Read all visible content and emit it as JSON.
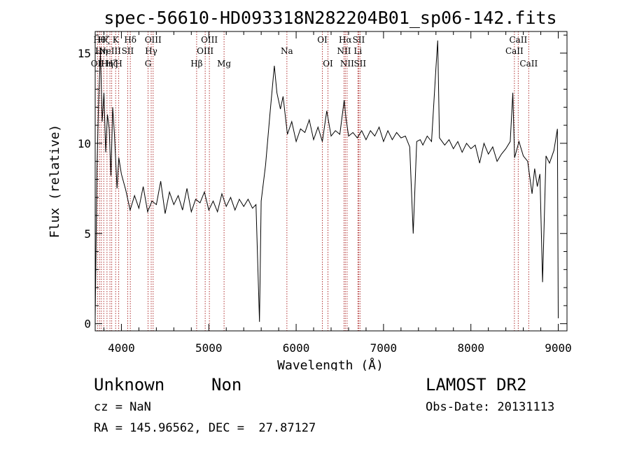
{
  "chart_data": {
    "type": "line",
    "title": "spec-56610-HD093318N282204B01_sp06-142.fits",
    "xlabel": "Wavelength (Å)",
    "ylabel": "Flux (relative)",
    "xlim": [
      3700,
      9100
    ],
    "ylim": [
      -0.4,
      16.2
    ],
    "x_ticks": [
      4000,
      5000,
      6000,
      7000,
      8000,
      9000
    ],
    "y_ticks": [
      0,
      5,
      10,
      15
    ],
    "grid": false,
    "series": [
      {
        "color": "#000000",
        "points": [
          [
            3700,
            0.3
          ],
          [
            3720,
            8.5
          ],
          [
            3740,
            12.5
          ],
          [
            3760,
            15.0
          ],
          [
            3780,
            11.2
          ],
          [
            3800,
            12.8
          ],
          [
            3820,
            9.5
          ],
          [
            3840,
            11.6
          ],
          [
            3860,
            10.8
          ],
          [
            3880,
            8.2
          ],
          [
            3900,
            12.0
          ],
          [
            3920,
            10.5
          ],
          [
            3950,
            7.5
          ],
          [
            3970,
            9.2
          ],
          [
            4000,
            8.3
          ],
          [
            4050,
            7.4
          ],
          [
            4100,
            6.3
          ],
          [
            4150,
            7.1
          ],
          [
            4200,
            6.4
          ],
          [
            4250,
            7.6
          ],
          [
            4300,
            6.2
          ],
          [
            4350,
            6.8
          ],
          [
            4400,
            6.6
          ],
          [
            4450,
            7.9
          ],
          [
            4500,
            6.1
          ],
          [
            4550,
            7.3
          ],
          [
            4600,
            6.6
          ],
          [
            4650,
            7.1
          ],
          [
            4700,
            6.3
          ],
          [
            4750,
            7.5
          ],
          [
            4800,
            6.2
          ],
          [
            4850,
            6.9
          ],
          [
            4900,
            6.7
          ],
          [
            4950,
            7.3
          ],
          [
            5000,
            6.3
          ],
          [
            5050,
            6.8
          ],
          [
            5100,
            6.2
          ],
          [
            5150,
            7.2
          ],
          [
            5200,
            6.5
          ],
          [
            5250,
            7.0
          ],
          [
            5300,
            6.3
          ],
          [
            5350,
            6.9
          ],
          [
            5400,
            6.5
          ],
          [
            5450,
            6.9
          ],
          [
            5500,
            6.4
          ],
          [
            5540,
            6.6
          ],
          [
            5580,
            0.1
          ],
          [
            5600,
            6.8
          ],
          [
            5650,
            8.8
          ],
          [
            5700,
            11.6
          ],
          [
            5750,
            14.3
          ],
          [
            5780,
            12.8
          ],
          [
            5820,
            11.9
          ],
          [
            5850,
            12.6
          ],
          [
            5900,
            10.5
          ],
          [
            5950,
            11.2
          ],
          [
            6000,
            10.1
          ],
          [
            6050,
            10.8
          ],
          [
            6100,
            10.6
          ],
          [
            6150,
            11.3
          ],
          [
            6200,
            10.2
          ],
          [
            6250,
            10.9
          ],
          [
            6300,
            10.1
          ],
          [
            6350,
            11.8
          ],
          [
            6400,
            10.4
          ],
          [
            6450,
            10.7
          ],
          [
            6500,
            10.5
          ],
          [
            6550,
            12.4
          ],
          [
            6570,
            11.4
          ],
          [
            6600,
            10.4
          ],
          [
            6650,
            10.6
          ],
          [
            6700,
            10.3
          ],
          [
            6750,
            10.7
          ],
          [
            6800,
            10.2
          ],
          [
            6850,
            10.7
          ],
          [
            6900,
            10.4
          ],
          [
            6950,
            10.9
          ],
          [
            7000,
            10.1
          ],
          [
            7050,
            10.7
          ],
          [
            7100,
            10.2
          ],
          [
            7150,
            10.6
          ],
          [
            7200,
            10.3
          ],
          [
            7250,
            10.4
          ],
          [
            7300,
            9.8
          ],
          [
            7340,
            5.0
          ],
          [
            7380,
            10.1
          ],
          [
            7420,
            10.2
          ],
          [
            7450,
            9.9
          ],
          [
            7500,
            10.4
          ],
          [
            7550,
            10.1
          ],
          [
            7600,
            14.2
          ],
          [
            7620,
            15.7
          ],
          [
            7640,
            10.3
          ],
          [
            7700,
            9.9
          ],
          [
            7750,
            10.2
          ],
          [
            7800,
            9.7
          ],
          [
            7850,
            10.1
          ],
          [
            7900,
            9.5
          ],
          [
            7950,
            10.0
          ],
          [
            8000,
            9.7
          ],
          [
            8050,
            9.9
          ],
          [
            8100,
            8.9
          ],
          [
            8150,
            10.0
          ],
          [
            8200,
            9.4
          ],
          [
            8250,
            9.8
          ],
          [
            8300,
            9.0
          ],
          [
            8350,
            9.4
          ],
          [
            8400,
            9.7
          ],
          [
            8450,
            10.1
          ],
          [
            8480,
            12.8
          ],
          [
            8500,
            9.2
          ],
          [
            8550,
            10.1
          ],
          [
            8600,
            9.3
          ],
          [
            8650,
            9.0
          ],
          [
            8700,
            7.2
          ],
          [
            8730,
            8.6
          ],
          [
            8760,
            7.6
          ],
          [
            8790,
            8.3
          ],
          [
            8820,
            2.3
          ],
          [
            8860,
            9.3
          ],
          [
            8900,
            8.9
          ],
          [
            8950,
            9.6
          ],
          [
            8990,
            10.8
          ],
          [
            9000,
            0.3
          ]
        ]
      }
    ],
    "lines": [
      {
        "x": 3727,
        "label": "OII",
        "row": 3
      },
      {
        "x": 3750,
        "label": "Hθ",
        "row": 1
      },
      {
        "x": 3770,
        "label": "Hη",
        "row": 2
      },
      {
        "x": 3798,
        "label": "Hζ",
        "row": 1
      },
      {
        "x": 3835,
        "label": "Hη",
        "row": 3
      },
      {
        "x": 3869,
        "label": "NeIII",
        "row": 2
      },
      {
        "x": 3889,
        "label": "Hζ",
        "row": 3
      },
      {
        "x": 3934,
        "label": "K",
        "row": 1
      },
      {
        "x": 3969,
        "label": "H",
        "row": 3
      },
      {
        "x": 4072,
        "label": "SII",
        "row": 2
      },
      {
        "x": 4102,
        "label": "Hδ",
        "row": 1
      },
      {
        "x": 4305,
        "label": "G",
        "row": 3
      },
      {
        "x": 4341,
        "label": "Hγ",
        "row": 2
      },
      {
        "x": 4363,
        "label": "OIII",
        "row": 1
      },
      {
        "x": 4861,
        "label": "Hβ",
        "row": 3
      },
      {
        "x": 4959,
        "label": "OIII",
        "row": 2
      },
      {
        "x": 5007,
        "label": "OIII",
        "row": 1
      },
      {
        "x": 5175,
        "label": "Mg",
        "row": 3
      },
      {
        "x": 5894,
        "label": "Na",
        "row": 2
      },
      {
        "x": 6300,
        "label": "OI",
        "row": 1
      },
      {
        "x": 6364,
        "label": "OI",
        "row": 3
      },
      {
        "x": 6548,
        "label": "NII",
        "row": 2
      },
      {
        "x": 6563,
        "label": "Hα",
        "row": 1
      },
      {
        "x": 6583,
        "label": "NII",
        "row": 3
      },
      {
        "x": 6707,
        "label": "Li",
        "row": 2
      },
      {
        "x": 6716,
        "label": "SII",
        "row": 1
      },
      {
        "x": 6731,
        "label": "SII",
        "row": 3
      },
      {
        "x": 8498,
        "label": "CaII",
        "row": 2
      },
      {
        "x": 8542,
        "label": "CaII",
        "row": 1
      },
      {
        "x": 8662,
        "label": "CaII",
        "row": 3
      }
    ]
  },
  "footer": {
    "object_class": "Unknown",
    "object_subclass": "Non",
    "survey": "LAMOST DR2",
    "redshift": "cz = NaN",
    "obs_date": "Obs-Date: 20131113",
    "coordinates": "RA = 145.96562, DEC =  27.87127"
  }
}
